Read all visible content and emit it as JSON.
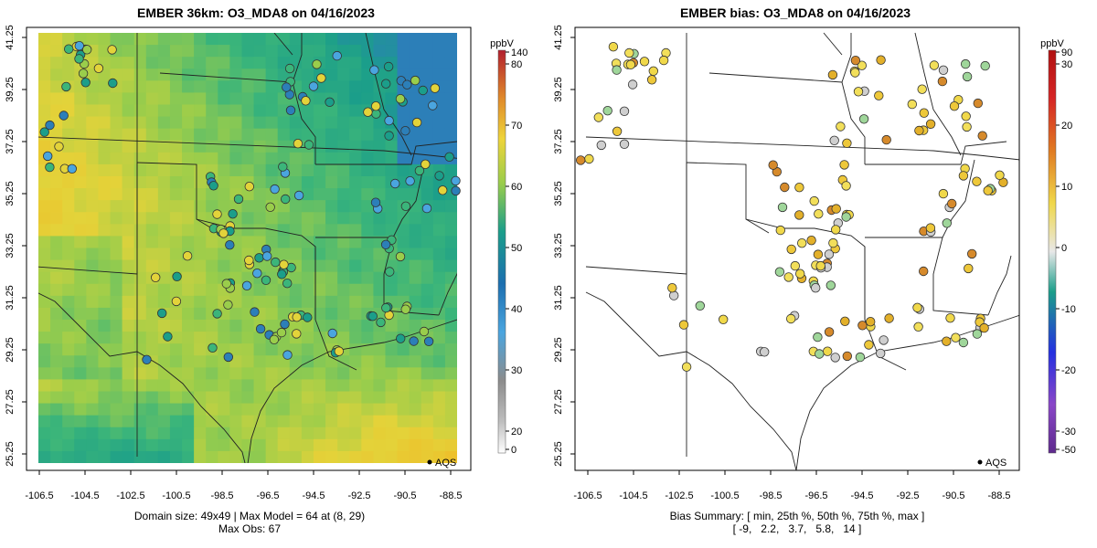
{
  "left_panel": {
    "title": "EMBER 36km: O3_MDA8 on 04/16/2023",
    "colorbar_units": "ppbV",
    "colorbar_ticks": [
      "0",
      "20",
      "30",
      "40",
      "50",
      "60",
      "70",
      "80",
      "140"
    ],
    "footer_line1": "Domain size: 49x49 | Max Model = 64 at (8, 29)",
    "footer_line2": "Max Obs: 67",
    "legend_label": "AQS"
  },
  "right_panel": {
    "title": "EMBER bias: O3_MDA8 on 04/16/2023",
    "colorbar_units": "ppbV",
    "colorbar_ticks": [
      "-50",
      "-30",
      "-20",
      "-10",
      "0",
      "10",
      "20",
      "30",
      "90"
    ],
    "footer_line1": "Bias Summary: [ min, 25th %, 50th %, 75th %, max ]",
    "footer_line2": "[ -9,   2.2,   3.7,   5.8,   14 ]",
    "legend_label": "AQS"
  },
  "axes": {
    "lon_ticks": [
      "-106.5",
      "-104.5",
      "-102.5",
      "-100.5",
      "-98.5",
      "-96.5",
      "-94.5",
      "-92.5",
      "-90.5",
      "-88.5"
    ],
    "lat_ticks": [
      "25.25",
      "27.25",
      "29.25",
      "31.25",
      "33.25",
      "35.25",
      "37.25",
      "39.25",
      "41.25"
    ]
  },
  "colors": {
    "model_scale": [
      "#2c7fb8",
      "#1b9e8a",
      "#3bb57a",
      "#9acd4b",
      "#e3d33a",
      "#eebf2a",
      "#d68a2b"
    ],
    "bias_scale": [
      "#7a2fa0",
      "#1f3fd8",
      "#1b9e8a",
      "#c8c8c8",
      "#f0d84a",
      "#e07b22",
      "#c81b1b"
    ]
  }
}
